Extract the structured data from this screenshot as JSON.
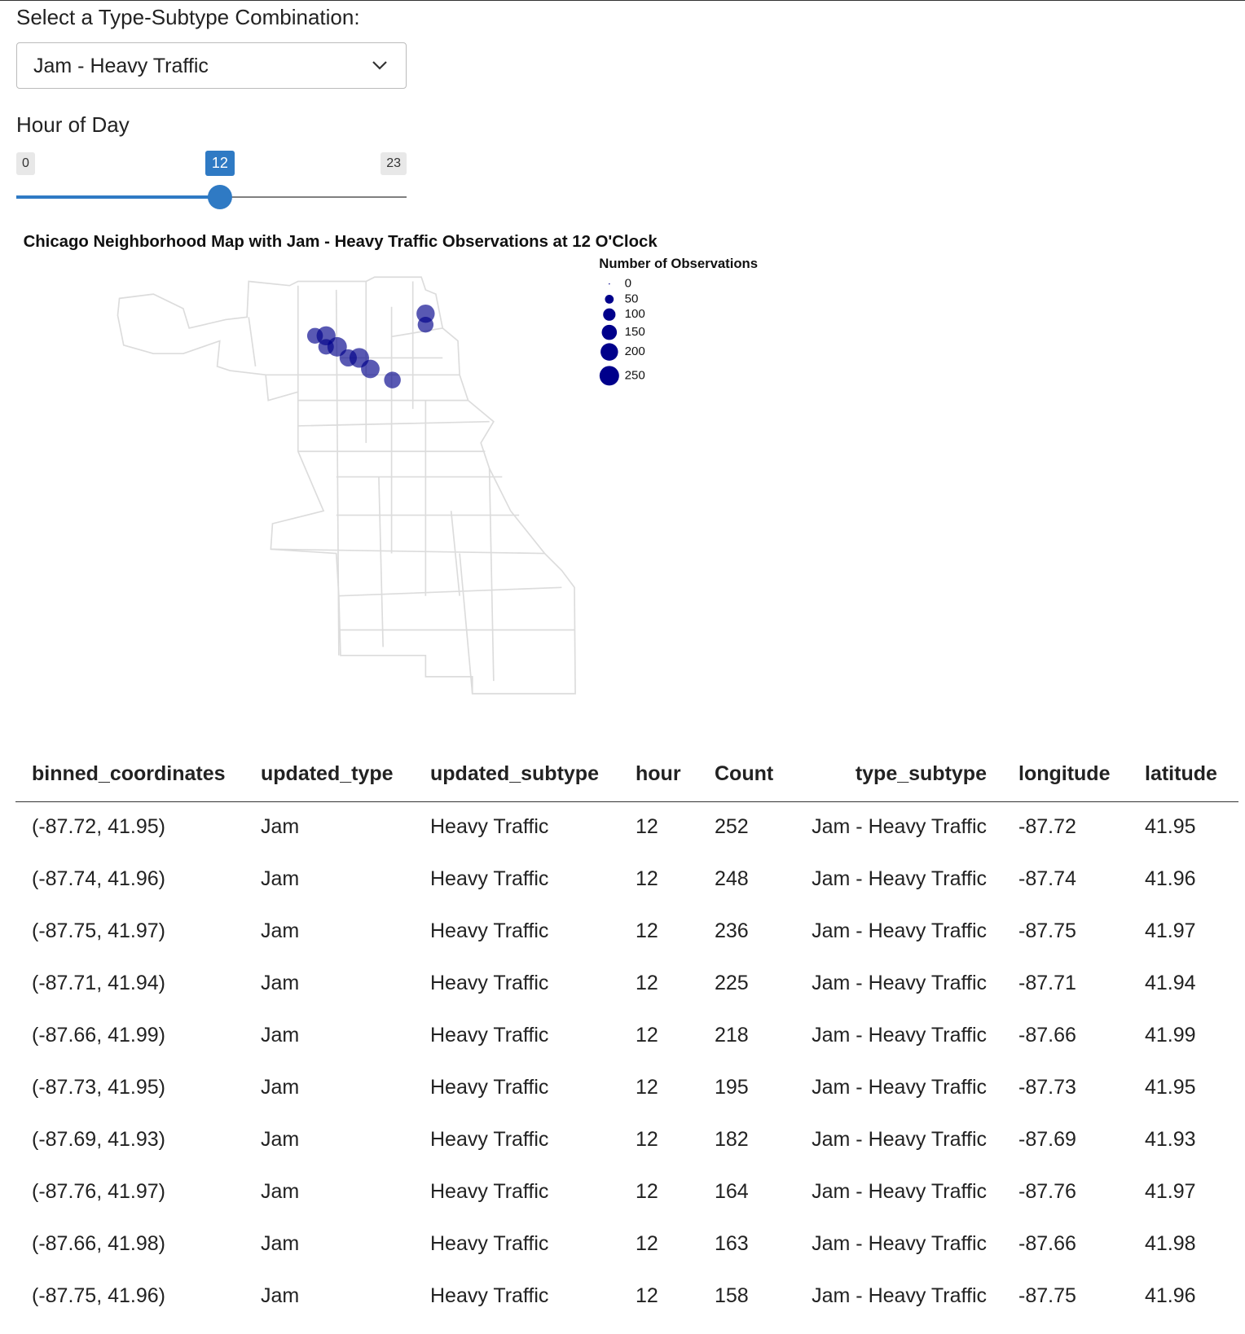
{
  "controls": {
    "select_label": "Select a Type-Subtype Combination:",
    "select_value": "Jam - Heavy Traffic",
    "slider_label": "Hour of Day",
    "slider": {
      "min": 0,
      "max": 23,
      "value": 12
    }
  },
  "map": {
    "title": "Chicago Neighborhood Map with Jam - Heavy Traffic Observations at 12 O'Clock",
    "legend_title": "Number of Observations",
    "legend_sizes": [
      0,
      50,
      100,
      150,
      200,
      250
    ],
    "point_color": "#00008b"
  },
  "table": {
    "columns": [
      "binned_coordinates",
      "updated_type",
      "updated_subtype",
      "hour",
      "Count",
      "type_subtype",
      "longitude",
      "latitude"
    ],
    "rows": [
      [
        "(-87.72, 41.95)",
        "Jam",
        "Heavy Traffic",
        12,
        252,
        "Jam - Heavy Traffic",
        -87.72,
        41.95
      ],
      [
        "(-87.74, 41.96)",
        "Jam",
        "Heavy Traffic",
        12,
        248,
        "Jam - Heavy Traffic",
        -87.74,
        41.96
      ],
      [
        "(-87.75, 41.97)",
        "Jam",
        "Heavy Traffic",
        12,
        236,
        "Jam - Heavy Traffic",
        -87.75,
        41.97
      ],
      [
        "(-87.71, 41.94)",
        "Jam",
        "Heavy Traffic",
        12,
        225,
        "Jam - Heavy Traffic",
        -87.71,
        41.94
      ],
      [
        "(-87.66, 41.99)",
        "Jam",
        "Heavy Traffic",
        12,
        218,
        "Jam - Heavy Traffic",
        -87.66,
        41.99
      ],
      [
        "(-87.73, 41.95)",
        "Jam",
        "Heavy Traffic",
        12,
        195,
        "Jam - Heavy Traffic",
        -87.73,
        41.95
      ],
      [
        "(-87.69, 41.93)",
        "Jam",
        "Heavy Traffic",
        12,
        182,
        "Jam - Heavy Traffic",
        -87.69,
        41.93
      ],
      [
        "(-87.76, 41.97)",
        "Jam",
        "Heavy Traffic",
        12,
        164,
        "Jam - Heavy Traffic",
        -87.76,
        41.97
      ],
      [
        "(-87.66, 41.98)",
        "Jam",
        "Heavy Traffic",
        12,
        163,
        "Jam - Heavy Traffic",
        -87.66,
        41.98
      ],
      [
        "(-87.75, 41.96)",
        "Jam",
        "Heavy Traffic",
        12,
        158,
        "Jam - Heavy Traffic",
        -87.75,
        41.96
      ]
    ]
  }
}
